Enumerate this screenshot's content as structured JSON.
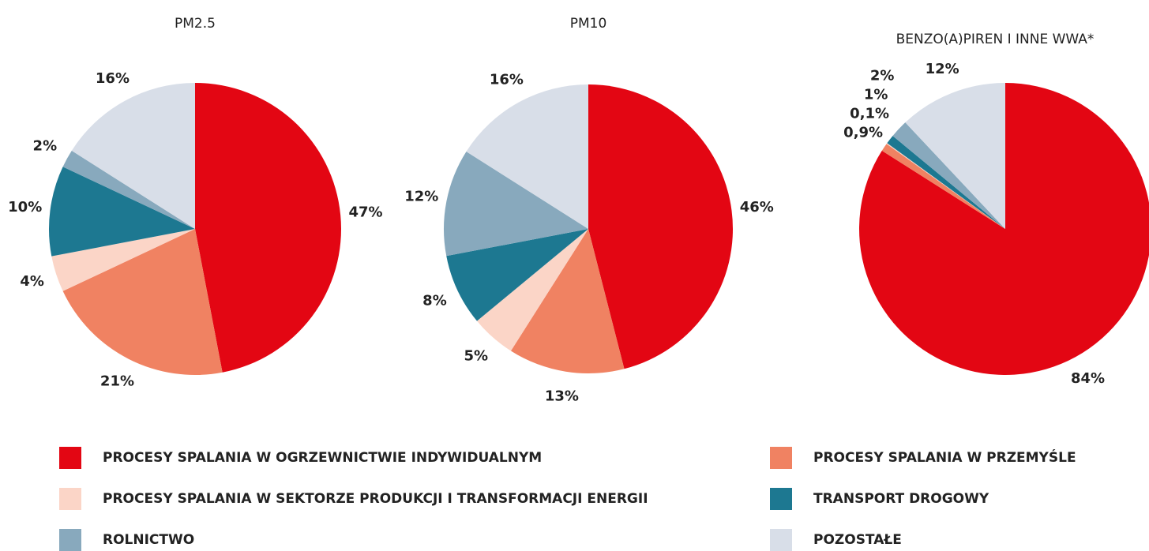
{
  "chart_data": [
    {
      "type": "pie",
      "title": "PM2.5",
      "values": [
        47,
        21,
        4,
        10,
        2,
        16
      ],
      "value_labels": [
        "47%",
        "21%",
        "4%",
        "10%",
        "2%",
        "16%"
      ]
    },
    {
      "type": "pie",
      "title": "PM10",
      "values": [
        46,
        13,
        5,
        8,
        12,
        16
      ],
      "value_labels": [
        "46%",
        "13%",
        "5%",
        "8%",
        "12%",
        "16%"
      ]
    },
    {
      "type": "pie",
      "title": "BENZO(A)PIREN I INNE WWA*",
      "values": [
        84,
        0.9,
        0.1,
        1,
        2,
        12
      ],
      "value_labels": [
        "84%",
        "0,9%",
        "0,1%",
        "1%",
        "2%",
        "12%"
      ]
    }
  ],
  "legend": {
    "items": [
      {
        "name": "PROCESY SPALANIA W OGRZEWNICTWIE INDYWIDUALNYM",
        "color": "#e30613"
      },
      {
        "name": "PROCESY SPALANIA W PRZEMYŚLE",
        "color": "#f08262"
      },
      {
        "name": "PROCESY SPALANIA W SEKTORZE PRODUKCJI I TRANSFORMACJI ENERGII",
        "color": "#fbd5c7"
      },
      {
        "name": "TRANSPORT DROGOWY",
        "color": "#1d7891"
      },
      {
        "name": "ROLNICTWO",
        "color": "#88a9bd"
      },
      {
        "name": "POZOSTAŁE",
        "color": "#d8dee8"
      }
    ]
  }
}
